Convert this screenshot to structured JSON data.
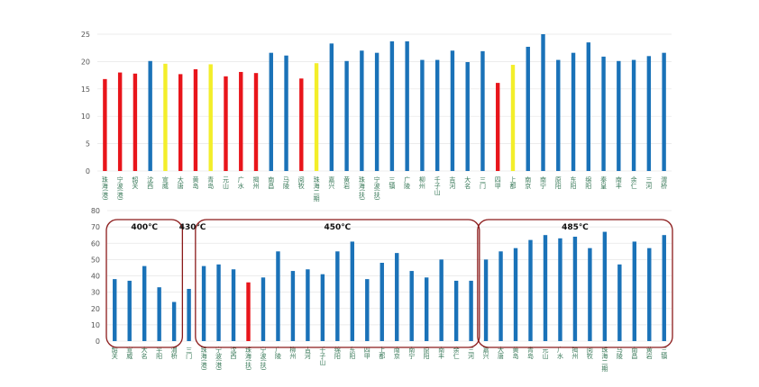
{
  "chart_data": [
    {
      "type": "bar",
      "categories": [
        "珠海(港)",
        "宁波(港)",
        "韶关",
        "沈西",
        "宣威",
        "大唐",
        "黄岛",
        "青岛",
        "元山",
        "广水",
        "揭州",
        "南昌",
        "马陵",
        "阅牧",
        "珠海二期",
        "嘉兴",
        "黄岩",
        "珠海(扶)",
        "宁波(扶)",
        "三镇",
        "广陵",
        "柳州",
        "千子山",
        "吉河",
        "大名",
        "三门",
        "四甲",
        "上都",
        "南京",
        "南宁",
        "原阳",
        "东阳",
        "绵阳",
        "秦皇",
        "南丰",
        "余仁",
        "三河",
        "渭桥"
      ],
      "values": [
        16.8,
        18,
        17.8,
        20.1,
        19.6,
        17.7,
        18.6,
        19.5,
        17.3,
        18.1,
        17.9,
        21.6,
        21.1,
        16.9,
        19.7,
        23.3,
        20.1,
        22,
        21.6,
        23.7,
        23.7,
        20.3,
        20.3,
        22,
        19.9,
        21.9,
        16.1,
        19.4,
        22.7,
        25,
        20.3,
        21.6,
        23.5,
        20.9,
        20.1,
        20.3,
        21,
        21.6
      ],
      "colors": [
        "#e8151b",
        "#e8151b",
        "#e8151b",
        "#1a72b8",
        "#f3ee2a",
        "#e8151b",
        "#e8151b",
        "#f3ee2a",
        "#e8151b",
        "#e8151b",
        "#e8151b",
        "#1a72b8",
        "#1a72b8",
        "#e8151b",
        "#f3ee2a",
        "#1a72b8",
        "#1a72b8",
        "#1a72b8",
        "#1a72b8",
        "#1a72b8",
        "#1a72b8",
        "#1a72b8",
        "#1a72b8",
        "#1a72b8",
        "#1a72b8",
        "#1a72b8",
        "#e8151b",
        "#f3ee2a",
        "#1a72b8",
        "#1a72b8",
        "#1a72b8",
        "#1a72b8",
        "#1a72b8",
        "#1a72b8",
        "#1a72b8",
        "#1a72b8",
        "#1a72b8",
        "#1a72b8"
      ],
      "ylim": [
        0,
        25
      ],
      "yticks": [
        0,
        5,
        10,
        15,
        20,
        25
      ],
      "grid": true
    },
    {
      "type": "grouped-bar",
      "groups": [
        {
          "label": "400℃",
          "box": true,
          "categories": [
            "韶关",
            "宣威",
            "大名",
            "平阳",
            "渭桥"
          ],
          "values": [
            38,
            37,
            46,
            33,
            24
          ],
          "colors": [
            "#1a72b8",
            "#1a72b8",
            "#1a72b8",
            "#1a72b8",
            "#1a72b8"
          ]
        },
        {
          "label": "430℃",
          "box": false,
          "categories": [
            "三门"
          ],
          "values": [
            32
          ],
          "colors": [
            "#1a72b8"
          ]
        },
        {
          "label": "450℃",
          "box": true,
          "categories": [
            "珠海(港)",
            "宁波(港)",
            "沈西",
            "珠海(扶)",
            "宁波(扶)",
            "广陵",
            "柳州",
            "吉河",
            "千子山",
            "绵阳",
            "东阳",
            "四甲",
            "上都",
            "南京",
            "南宁",
            "原阳",
            "南丰",
            "余仁",
            "三河"
          ],
          "values": [
            46,
            47,
            44,
            36,
            39,
            55,
            43,
            44,
            41,
            55,
            61,
            38,
            48,
            54,
            43,
            39,
            50,
            37,
            37
          ],
          "colors": [
            "#1a72b8",
            "#1a72b8",
            "#1a72b8",
            "#e8151b",
            "#1a72b8",
            "#1a72b8",
            "#1a72b8",
            "#1a72b8",
            "#1a72b8",
            "#1a72b8",
            "#1a72b8",
            "#1a72b8",
            "#1a72b8",
            "#1a72b8",
            "#1a72b8",
            "#1a72b8",
            "#1a72b8",
            "#1a72b8",
            "#1a72b8"
          ]
        },
        {
          "label": "485℃",
          "box": true,
          "categories": [
            "嘉兴",
            "大唐",
            "黄岛",
            "青岛",
            "元山",
            "广水",
            "揭州",
            "阅牧",
            "珠海二期",
            "马陵",
            "南昌",
            "黄岩",
            "三镇"
          ],
          "values": [
            50,
            55,
            57,
            62,
            65,
            63,
            64,
            57,
            67,
            47,
            61,
            57,
            65
          ],
          "colors": [
            "#1a72b8",
            "#1a72b8",
            "#1a72b8",
            "#1a72b8",
            "#1a72b8",
            "#1a72b8",
            "#1a72b8",
            "#1a72b8",
            "#1a72b8",
            "#1a72b8",
            "#1a72b8",
            "#1a72b8",
            "#1a72b8"
          ]
        }
      ],
      "ylim": [
        0,
        80
      ],
      "yticks": [
        0,
        10,
        20,
        30,
        40,
        50,
        60,
        70,
        80
      ],
      "grid": true
    }
  ]
}
